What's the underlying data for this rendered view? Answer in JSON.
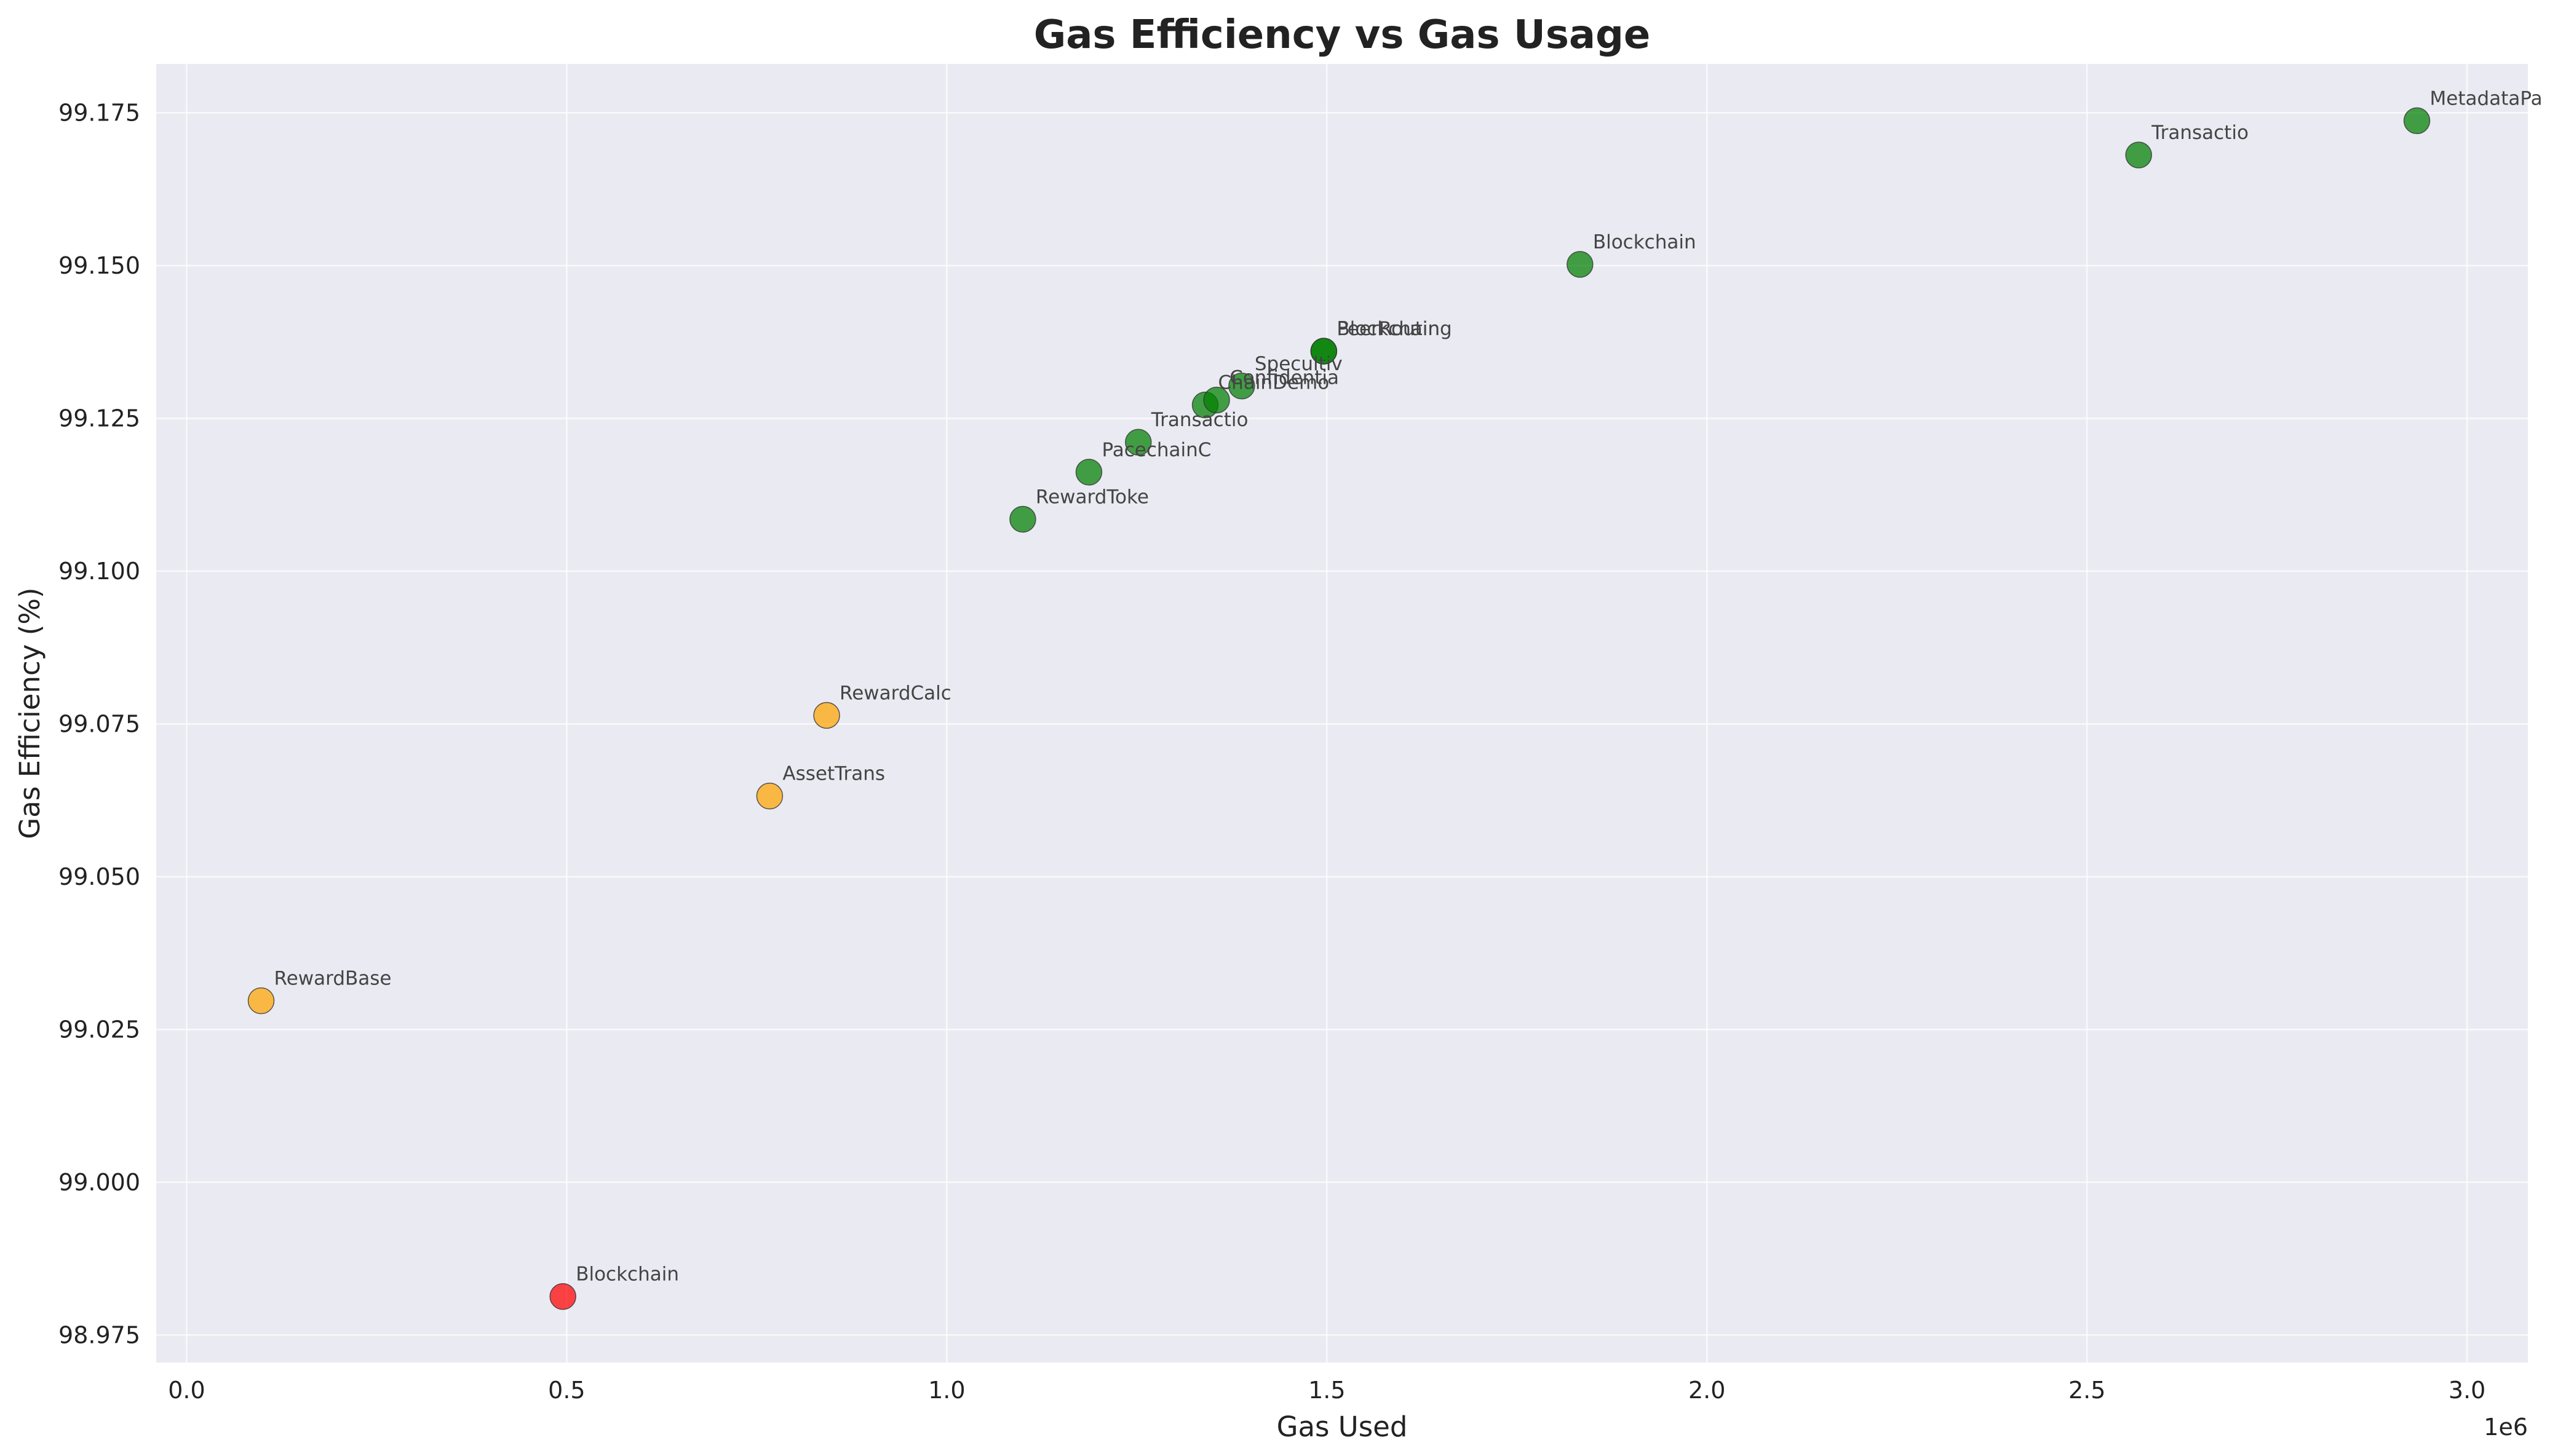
{
  "chart_data": {
    "type": "scatter",
    "title": "Gas Efficiency vs Gas Usage",
    "xlabel": "Gas Used",
    "ylabel": "Gas Efficiency (%)",
    "x_offset_label": "1e6",
    "xlim": [
      -0.04,
      3.08
    ],
    "ylim": [
      98.9705,
      99.183
    ],
    "x_scale_factor": 1000000,
    "xticks": [
      0.0,
      0.5,
      1.0,
      1.5,
      2.0,
      2.5,
      3.0
    ],
    "xtick_labels": [
      "0.0",
      "0.5",
      "1.0",
      "1.5",
      "2.0",
      "2.5",
      "3.0"
    ],
    "yticks": [
      98.975,
      99.0,
      99.025,
      99.05,
      99.075,
      99.1,
      99.125,
      99.15,
      99.175
    ],
    "ytick_labels": [
      "98.975",
      "99.000",
      "99.025",
      "99.050",
      "99.075",
      "99.100",
      "99.125",
      "99.150",
      "99.175"
    ],
    "grid": true,
    "colors": {
      "background": "#EAEAF2",
      "green": "#008000",
      "orange": "#FFA500",
      "red": "#FF0000"
    },
    "points": [
      {
        "label": "Blockchain",
        "x": 0.495,
        "y": 98.9813,
        "color": "red"
      },
      {
        "label": "RewardBase",
        "x": 0.098,
        "y": 99.0297,
        "color": "orange"
      },
      {
        "label": "AssetTrans",
        "x": 0.767,
        "y": 99.0632,
        "color": "orange"
      },
      {
        "label": "RewardCalc",
        "x": 0.842,
        "y": 99.0764,
        "color": "orange"
      },
      {
        "label": "RewardToke",
        "x": 1.1,
        "y": 99.1085,
        "color": "green"
      },
      {
        "label": "PacechainC",
        "x": 1.187,
        "y": 99.1162,
        "color": "green"
      },
      {
        "label": "Transactio",
        "x": 1.252,
        "y": 99.1211,
        "color": "green"
      },
      {
        "label": "ChainDemo",
        "x": 1.34,
        "y": 99.1272,
        "color": "green"
      },
      {
        "label": "Confidentia",
        "x": 1.355,
        "y": 99.128,
        "color": "green"
      },
      {
        "label": "Specultiv",
        "x": 1.388,
        "y": 99.1303,
        "color": "green"
      },
      {
        "label": "PeerRouting",
        "x": 1.496,
        "y": 99.136,
        "color": "green"
      },
      {
        "label": "Blockchain",
        "x": 1.496,
        "y": 99.136,
        "color": "green"
      },
      {
        "label": "Blockchain",
        "x": 1.833,
        "y": 99.1502,
        "color": "green"
      },
      {
        "label": "Transactio",
        "x": 2.568,
        "y": 99.1681,
        "color": "green"
      },
      {
        "label": "MetadataPa",
        "x": 2.934,
        "y": 99.1737,
        "color": "green"
      }
    ]
  }
}
